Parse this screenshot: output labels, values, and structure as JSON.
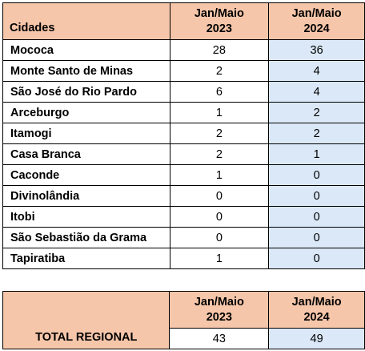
{
  "main_table": {
    "headers": {
      "city": "Cidades",
      "col_2023": [
        "Jan/Maio",
        "2023"
      ],
      "col_2024": [
        "Jan/Maio",
        "2024"
      ]
    },
    "rows": [
      {
        "city": "Mococa",
        "v2023": "28",
        "v2024": "36"
      },
      {
        "city": "Monte Santo de Minas",
        "v2023": "2",
        "v2024": "4"
      },
      {
        "city": "São José do Rio Pardo",
        "v2023": "6",
        "v2024": "4"
      },
      {
        "city": "Arceburgo",
        "v2023": "1",
        "v2024": "2"
      },
      {
        "city": "Itamogi",
        "v2023": "2",
        "v2024": "2"
      },
      {
        "city": "Casa Branca",
        "v2023": "2",
        "v2024": "1"
      },
      {
        "city": "Caconde",
        "v2023": "1",
        "v2024": "0"
      },
      {
        "city": "Divinolândia",
        "v2023": "0",
        "v2024": "0"
      },
      {
        "city": "Itobi",
        "v2023": "0",
        "v2024": "0"
      },
      {
        "city": "São Sebastião da Grama",
        "v2023": "0",
        "v2024": "0"
      },
      {
        "city": "Tapiratiba",
        "v2023": "1",
        "v2024": "0"
      }
    ]
  },
  "total_table": {
    "label": "TOTAL REGIONAL",
    "col_2023": [
      "Jan/Maio",
      "2023"
    ],
    "col_2024": [
      "Jan/Maio",
      "2024"
    ],
    "v2023": "43",
    "v2024": "49"
  },
  "colors": {
    "header_bg": "#f6c6aa",
    "col_2024_bg": "#dae8f7",
    "border": "#000000"
  }
}
